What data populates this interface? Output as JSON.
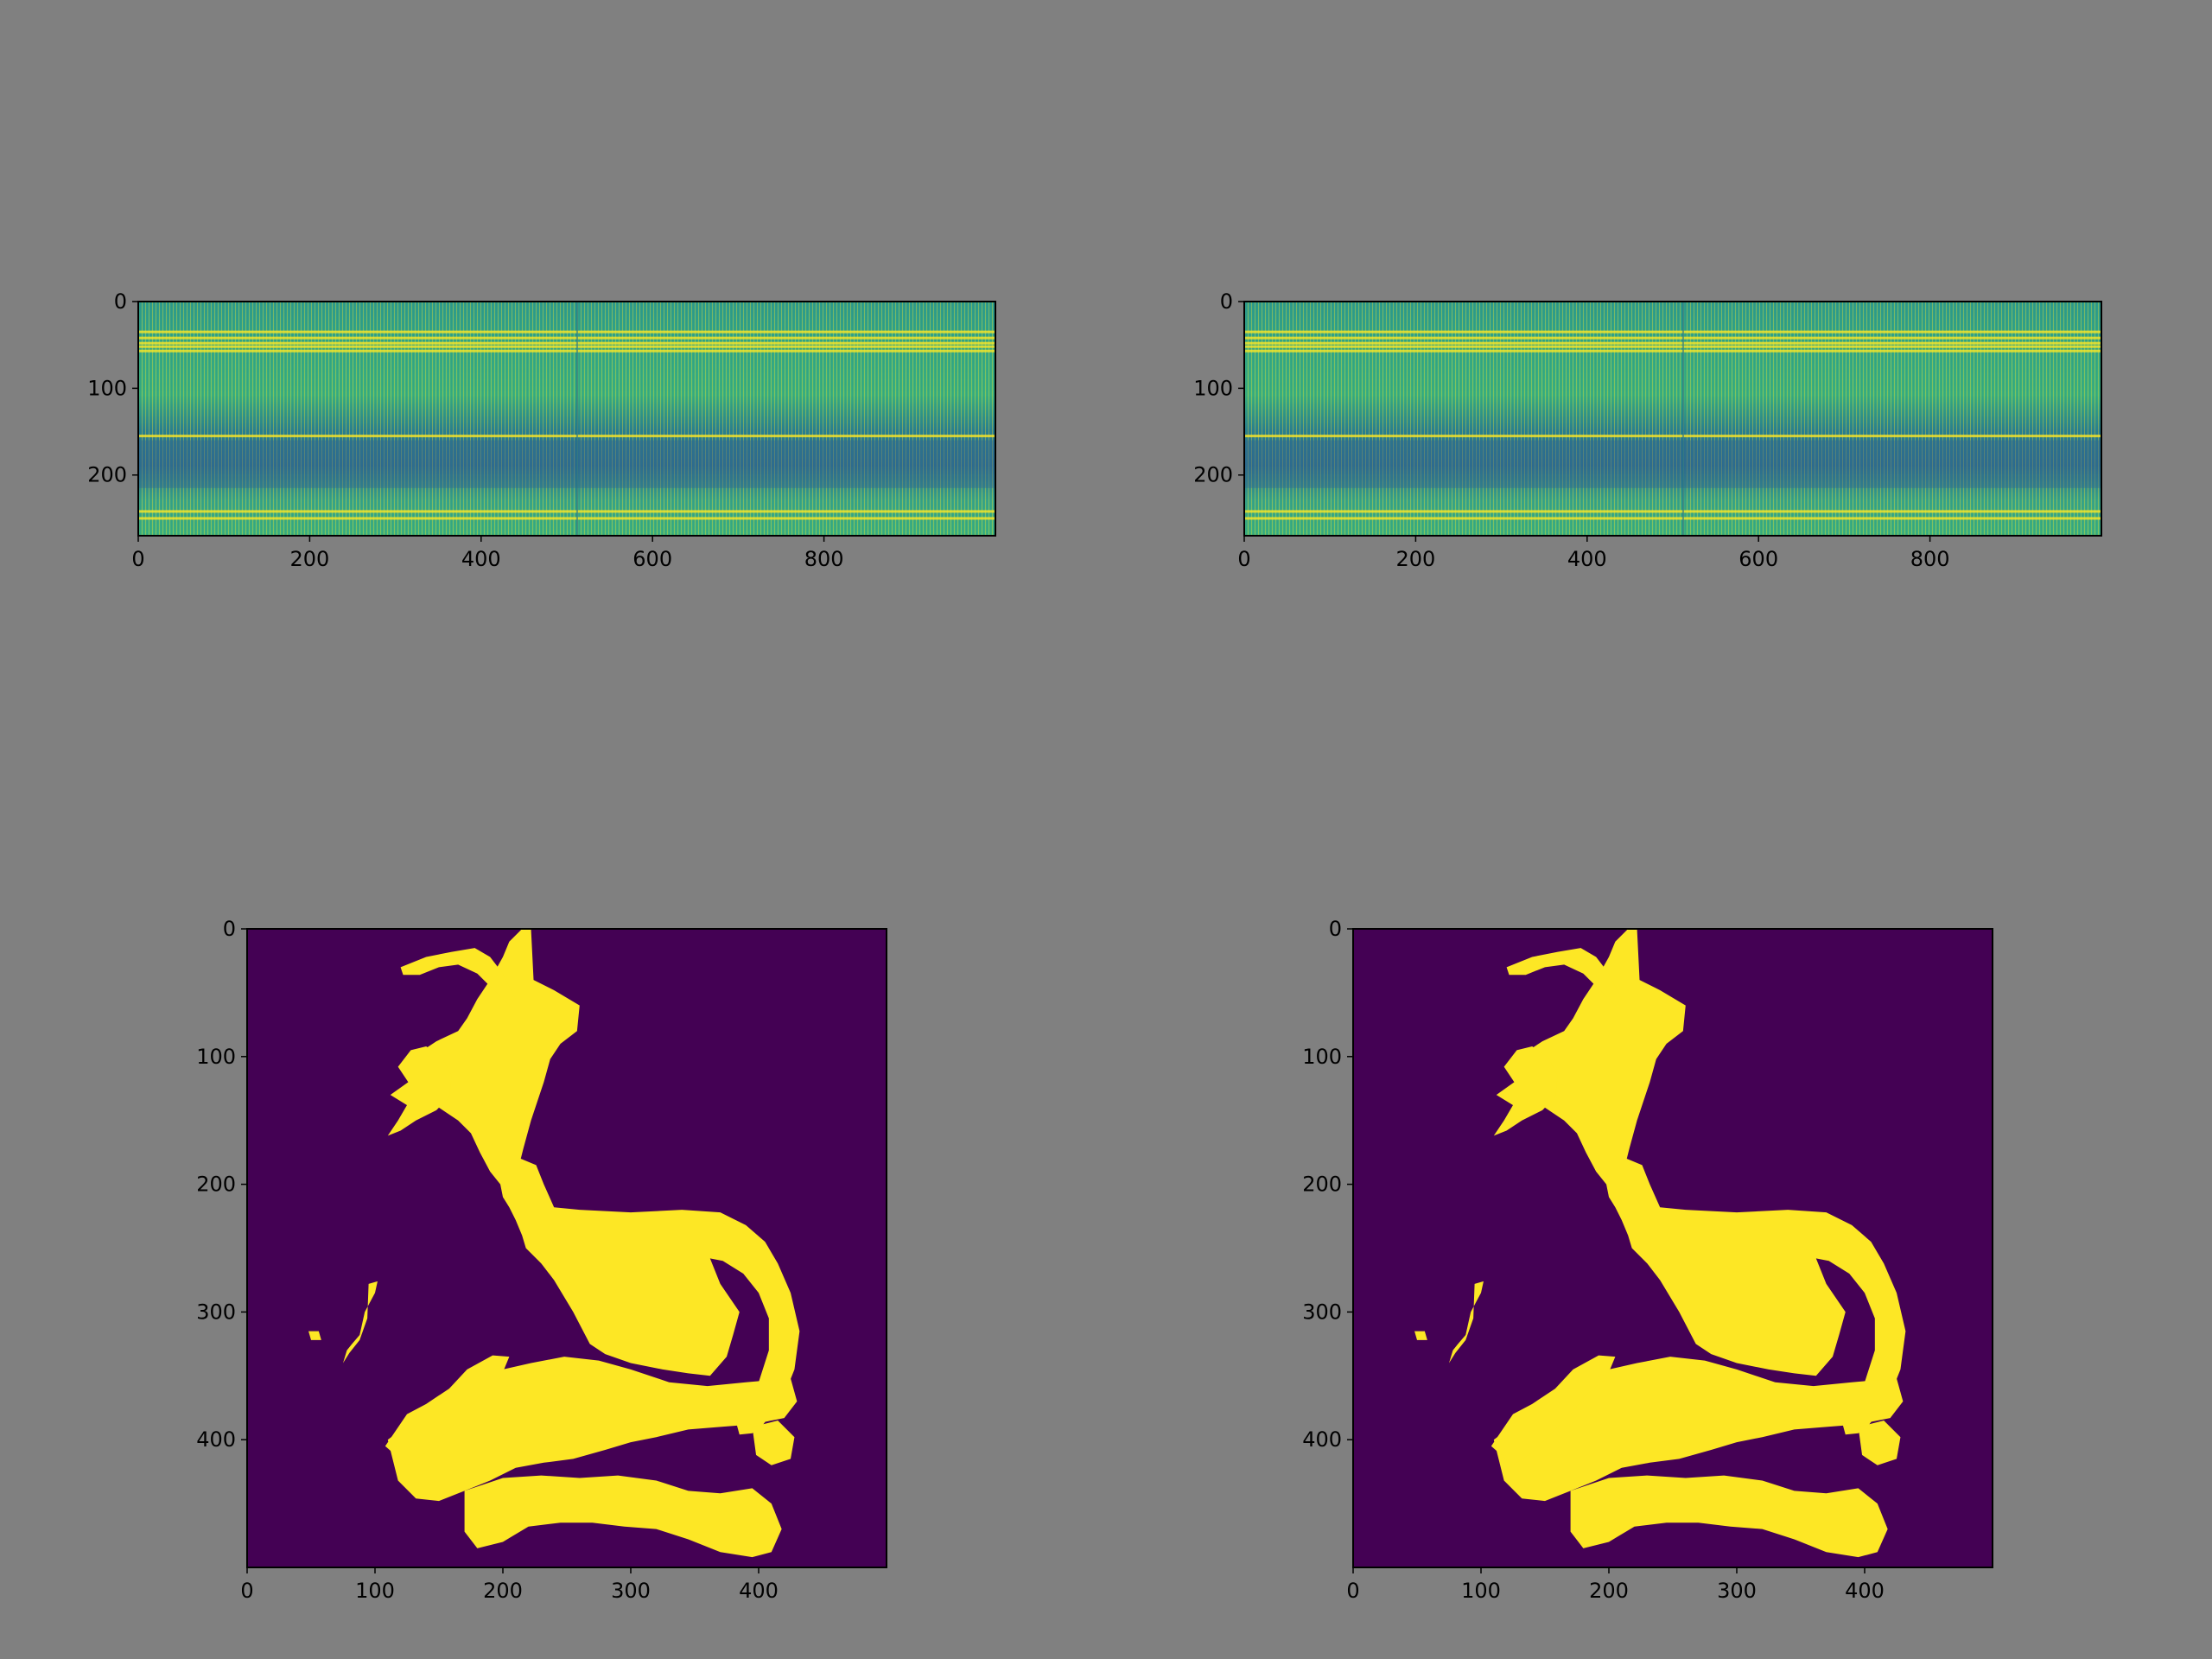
{
  "figure": {
    "background": "#808080"
  },
  "chart_data": [
    {
      "type": "heatmap",
      "panel": "top-left",
      "colormap": "viridis",
      "xlim": [
        0,
        1000
      ],
      "ylim": [
        270,
        0
      ],
      "x_ticks": [
        0,
        200,
        400,
        600,
        800
      ],
      "y_ticks": [
        0,
        100,
        200
      ],
      "bright_rows": [
        35,
        42,
        48,
        52,
        57,
        155,
        242,
        250
      ],
      "dark_band_rows": [
        160,
        215
      ],
      "column_seam_at": 512
    },
    {
      "type": "heatmap",
      "panel": "top-right",
      "colormap": "viridis",
      "xlim": [
        0,
        1000
      ],
      "ylim": [
        270,
        0
      ],
      "x_ticks": [
        0,
        200,
        400,
        600,
        800
      ],
      "y_ticks": [
        0,
        100,
        200
      ],
      "bright_rows": [
        35,
        42,
        48,
        52,
        57,
        155,
        242,
        250
      ],
      "dark_band_rows": [
        160,
        215
      ],
      "column_seam_at": 512
    },
    {
      "type": "heatmap",
      "panel": "bottom-left",
      "colormap": "binary mask (viridis)",
      "mask_colors": {
        "background": "#440154",
        "foreground": "#fde725"
      },
      "xlim": [
        0,
        500
      ],
      "ylim": [
        500,
        0
      ],
      "x_ticks": [
        0,
        100,
        200,
        300,
        400
      ],
      "y_ticks": [
        0,
        100,
        200,
        300,
        400
      ]
    },
    {
      "type": "heatmap",
      "panel": "bottom-right",
      "colormap": "binary mask (viridis)",
      "mask_colors": {
        "background": "#440154",
        "foreground": "#fde725"
      },
      "xlim": [
        0,
        500
      ],
      "ylim": [
        500,
        0
      ],
      "x_ticks": [
        0,
        100,
        200,
        300,
        400
      ],
      "y_ticks": [
        0,
        100,
        200,
        300,
        400
      ]
    }
  ]
}
